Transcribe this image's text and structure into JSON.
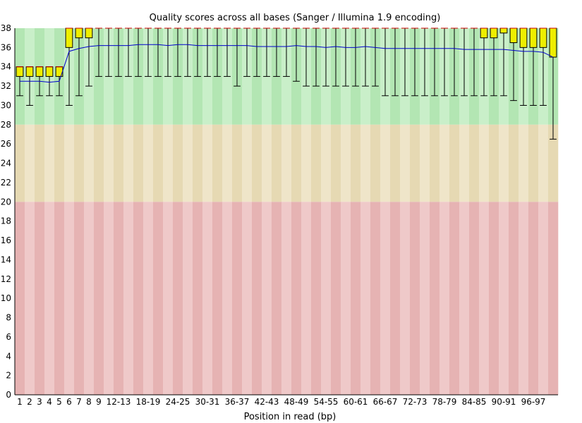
{
  "chart_data": {
    "type": "box",
    "title": "Quality scores across all bases (Sanger / Illumina 1.9 encoding)",
    "xlabel": "Position in read (bp)",
    "ylabel": "",
    "ylim": [
      0,
      38
    ],
    "y_ticks": [
      0,
      2,
      4,
      6,
      8,
      10,
      12,
      14,
      16,
      18,
      20,
      22,
      24,
      26,
      28,
      30,
      32,
      34,
      36,
      38
    ],
    "categories": [
      "1",
      "2",
      "3",
      "4",
      "5",
      "6",
      "7",
      "8",
      "9",
      "10-11",
      "12-13",
      "14-15",
      "16-17",
      "18-19",
      "20-21",
      "22-23",
      "24-25",
      "26-27",
      "28-29",
      "30-31",
      "32-33",
      "34-35",
      "36-37",
      "38-39",
      "40-41",
      "42-43",
      "44-45",
      "46-47",
      "48-49",
      "50-51",
      "52-53",
      "54-55",
      "56-57",
      "58-59",
      "60-61",
      "62-63",
      "64-65",
      "66-67",
      "68-69",
      "70-71",
      "72-73",
      "74-75",
      "76-77",
      "78-79",
      "80-81",
      "82-83",
      "84-85",
      "86-87",
      "88-89",
      "90-91",
      "92-93",
      "94-95",
      "96-97",
      "98-99",
      "100"
    ],
    "x_tick_labels": [
      "1",
      "2",
      "3",
      "4",
      "5",
      "6",
      "7",
      "8",
      "9",
      "12-13",
      "18-19",
      "24-25",
      "30-31",
      "36-37",
      "42-43",
      "48-49",
      "54-55",
      "60-61",
      "66-67",
      "72-73",
      "78-79",
      "84-85",
      "90-91",
      "96-97"
    ],
    "x_tick_positions": [
      1,
      2,
      3,
      4,
      5,
      6,
      7,
      8,
      9,
      11,
      14,
      17,
      20,
      23,
      26,
      29,
      32,
      35,
      38,
      41,
      44,
      47,
      50,
      53
    ],
    "zones": [
      {
        "name": "good",
        "from": 28,
        "to": 38,
        "colors": [
          "#b3e6b3",
          "#c9efc9"
        ]
      },
      {
        "name": "acceptable",
        "from": 20,
        "to": 28,
        "colors": [
          "#e6d9b3",
          "#efe5c9"
        ]
      },
      {
        "name": "poor",
        "from": 0,
        "to": 20,
        "colors": [
          "#e6b3b3",
          "#efc9c9"
        ]
      }
    ],
    "colors": {
      "box": "#eeee00",
      "box_border": "#000000",
      "mean_line": "#0000cc",
      "median": "#cc0000",
      "whisker": "#000000"
    },
    "mean": [
      32.5,
      32.5,
      32.5,
      32.4,
      32.5,
      35.6,
      35.9,
      36.1,
      36.2,
      36.2,
      36.2,
      36.2,
      36.3,
      36.3,
      36.3,
      36.2,
      36.3,
      36.3,
      36.2,
      36.2,
      36.2,
      36.2,
      36.2,
      36.2,
      36.1,
      36.1,
      36.1,
      36.1,
      36.2,
      36.1,
      36.1,
      36.0,
      36.1,
      36.0,
      36.0,
      36.1,
      36.0,
      35.9,
      35.9,
      35.9,
      35.9,
      35.9,
      35.9,
      35.9,
      35.9,
      35.8,
      35.8,
      35.8,
      35.8,
      35.8,
      35.7,
      35.6,
      35.6,
      35.5,
      35.0
    ],
    "median": [
      34,
      34,
      34,
      34,
      34,
      38,
      38,
      38,
      38,
      38,
      38,
      38,
      38,
      38,
      38,
      38,
      38,
      38,
      38,
      38,
      38,
      38,
      38,
      38,
      38,
      38,
      38,
      38,
      38,
      38,
      38,
      38,
      38,
      38,
      38,
      38,
      38,
      38,
      38,
      38,
      38,
      38,
      38,
      38,
      38,
      38,
      38,
      38,
      38,
      38,
      38,
      38,
      38,
      38,
      38
    ],
    "q1": [
      33,
      33,
      33,
      33,
      33,
      36,
      37,
      37,
      38,
      38,
      38,
      38,
      38,
      38,
      38,
      38,
      38,
      38,
      38,
      38,
      38,
      38,
      38,
      38,
      38,
      38,
      38,
      38,
      38,
      38,
      38,
      38,
      38,
      38,
      38,
      38,
      38,
      38,
      38,
      38,
      38,
      38,
      38,
      38,
      38,
      38,
      38,
      37,
      37,
      37.5,
      36.5,
      36,
      36,
      36,
      35
    ],
    "q3": [
      34,
      34,
      34,
      34,
      34,
      38,
      38,
      38,
      38,
      38,
      38,
      38,
      38,
      38,
      38,
      38,
      38,
      38,
      38,
      38,
      38,
      38,
      38,
      38,
      38,
      38,
      38,
      38,
      38,
      38,
      38,
      38,
      38,
      38,
      38,
      38,
      38,
      38,
      38,
      38,
      38,
      38,
      38,
      38,
      38,
      38,
      38,
      38,
      38,
      38,
      38,
      38,
      38,
      38,
      38
    ],
    "lower_whisker": [
      31,
      30,
      31,
      31,
      31,
      30,
      31,
      32,
      33,
      33,
      33,
      33,
      33,
      33,
      33,
      33,
      33,
      33,
      33,
      33,
      33,
      33,
      32,
      33,
      33,
      33,
      33,
      33,
      32.5,
      32,
      32,
      32,
      32,
      32,
      32,
      32,
      32,
      31,
      31,
      31,
      31,
      31,
      31,
      31,
      31,
      31,
      31,
      31,
      31,
      31,
      30.5,
      30,
      30,
      30,
      26.5
    ],
    "upper_whisker": [
      34,
      34,
      34,
      34,
      34,
      38,
      38,
      38,
      38,
      38,
      38,
      38,
      38,
      38,
      38,
      38,
      38,
      38,
      38,
      38,
      38,
      38,
      38,
      38,
      38,
      38,
      38,
      38,
      38,
      38,
      38,
      38,
      38,
      38,
      38,
      38,
      38,
      38,
      38,
      38,
      38,
      38,
      38,
      38,
      38,
      38,
      38,
      38,
      38,
      38,
      38,
      38,
      38,
      38,
      38
    ]
  }
}
